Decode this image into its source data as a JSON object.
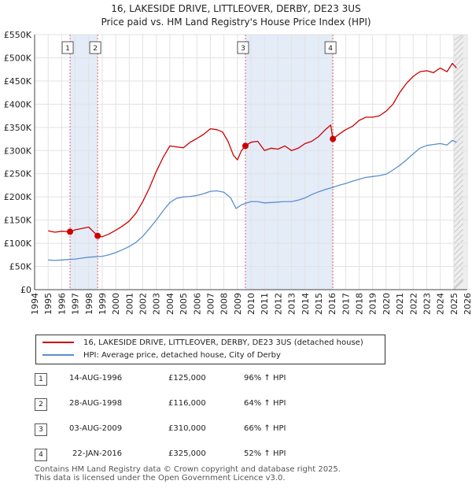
{
  "chart_data": {
    "type": "line",
    "title": "16, LAKESIDE DRIVE, LITTLEOVER, DERBY, DE23 3US",
    "subtitle": "Price paid vs. HM Land Registry's House Price Index (HPI)",
    "xlabel": "",
    "ylabel": "",
    "xlim": [
      1994,
      2026
    ],
    "ylim": [
      0,
      550000
    ],
    "grid": true,
    "legend_position": "bottom",
    "x_ticks": [
      1994,
      1995,
      1996,
      1997,
      1998,
      1999,
      2000,
      2001,
      2002,
      2003,
      2004,
      2005,
      2006,
      2007,
      2008,
      2009,
      2010,
      2011,
      2012,
      2013,
      2014,
      2015,
      2016,
      2017,
      2018,
      2019,
      2020,
      2021,
      2022,
      2023,
      2024,
      2025,
      2026
    ],
    "y_ticks": [
      0,
      50000,
      100000,
      150000,
      200000,
      250000,
      300000,
      350000,
      400000,
      450000,
      500000,
      550000
    ],
    "y_tick_labels": [
      "£0",
      "£50K",
      "£100K",
      "£150K",
      "£200K",
      "£250K",
      "£300K",
      "£350K",
      "£400K",
      "£450K",
      "£500K",
      "£550K"
    ],
    "series": [
      {
        "name": "16, LAKESIDE DRIVE, LITTLEOVER, DERBY, DE23 3US (detached house)",
        "color": "#cc0000",
        "x": [
          1995.0,
          1995.5,
          1996.0,
          1996.62,
          1997.0,
          1997.5,
          1998.0,
          1998.66,
          1999.0,
          1999.5,
          2000.0,
          2000.5,
          2001.0,
          2001.5,
          2002.0,
          2002.5,
          2003.0,
          2003.5,
          2004.0,
          2004.5,
          2005.0,
          2005.5,
          2006.0,
          2006.5,
          2007.0,
          2007.5,
          2007.9,
          2008.3,
          2008.7,
          2009.0,
          2009.3,
          2009.59,
          2010.0,
          2010.5,
          2011.0,
          2011.5,
          2012.0,
          2012.5,
          2013.0,
          2013.5,
          2014.0,
          2014.5,
          2015.0,
          2015.5,
          2015.9,
          2016.06,
          2016.5,
          2017.0,
          2017.5,
          2018.0,
          2018.5,
          2019.0,
          2019.5,
          2020.0,
          2020.5,
          2021.0,
          2021.5,
          2022.0,
          2022.5,
          2023.0,
          2023.5,
          2024.0,
          2024.5,
          2024.9,
          2025.2
        ],
        "values": [
          127000,
          124000,
          126000,
          125000,
          129000,
          132000,
          135000,
          116000,
          114000,
          120000,
          128000,
          137000,
          148000,
          165000,
          190000,
          220000,
          255000,
          285000,
          310000,
          308000,
          306000,
          318000,
          326000,
          335000,
          347000,
          345000,
          340000,
          320000,
          290000,
          280000,
          300000,
          310000,
          318000,
          320000,
          300000,
          305000,
          303000,
          310000,
          300000,
          305000,
          315000,
          320000,
          330000,
          345000,
          355000,
          325000,
          335000,
          345000,
          352000,
          365000,
          372000,
          372000,
          375000,
          385000,
          400000,
          425000,
          445000,
          460000,
          470000,
          472000,
          468000,
          478000,
          470000,
          488000,
          478000
        ]
      },
      {
        "name": "HPI: Average price, detached house, City of Derby",
        "color": "#5b8fcc",
        "x": [
          1995.0,
          1995.5,
          1996.0,
          1996.5,
          1997.0,
          1997.5,
          1998.0,
          1998.5,
          1999.0,
          1999.5,
          2000.0,
          2000.5,
          2001.0,
          2001.5,
          2002.0,
          2002.5,
          2003.0,
          2003.5,
          2004.0,
          2004.5,
          2005.0,
          2005.5,
          2006.0,
          2006.5,
          2007.0,
          2007.5,
          2008.0,
          2008.5,
          2008.9,
          2009.3,
          2009.6,
          2010.0,
          2010.5,
          2011.0,
          2011.5,
          2012.0,
          2012.5,
          2013.0,
          2013.5,
          2014.0,
          2014.5,
          2015.0,
          2015.5,
          2016.0,
          2016.5,
          2017.0,
          2017.5,
          2018.0,
          2018.5,
          2019.0,
          2019.5,
          2020.0,
          2020.5,
          2021.0,
          2021.5,
          2022.0,
          2022.5,
          2023.0,
          2023.5,
          2024.0,
          2024.5,
          2024.9,
          2025.2
        ],
        "values": [
          64000,
          63000,
          64000,
          65000,
          66000,
          68000,
          70000,
          71000,
          72000,
          75000,
          80000,
          86000,
          93000,
          102000,
          115000,
          132000,
          150000,
          170000,
          188000,
          197000,
          200000,
          201000,
          203000,
          207000,
          212000,
          213000,
          210000,
          198000,
          175000,
          183000,
          186000,
          190000,
          190000,
          187000,
          188000,
          189000,
          190000,
          190000,
          193000,
          198000,
          205000,
          211000,
          216000,
          220000,
          225000,
          229000,
          234000,
          238000,
          242000,
          244000,
          246000,
          249000,
          258000,
          268000,
          280000,
          293000,
          305000,
          311000,
          313000,
          315000,
          312000,
          322000,
          318000
        ]
      }
    ],
    "annotations": [
      {
        "label": "1",
        "x": 1996.62,
        "value": 125000,
        "date": "14-AUG-1996",
        "price": "£125,000",
        "hpi_change": "96% ↑ HPI"
      },
      {
        "label": "2",
        "x": 1998.66,
        "value": 116000,
        "date": "28-AUG-1998",
        "price": "£116,000",
        "hpi_change": "64% ↑ HPI"
      },
      {
        "label": "3",
        "x": 2009.59,
        "value": 310000,
        "date": "03-AUG-2009",
        "price": "£310,000",
        "hpi_change": "66% ↑ HPI"
      },
      {
        "label": "4",
        "x": 2016.06,
        "value": 325000,
        "date": "22-JAN-2016",
        "price": "£325,000",
        "hpi_change": "52% ↑ HPI"
      }
    ]
  },
  "footer": {
    "line1": "Contains HM Land Registry data © Crown copyright and database right 2025.",
    "line2": "This data is licensed under the Open Government Licence v3.0."
  }
}
